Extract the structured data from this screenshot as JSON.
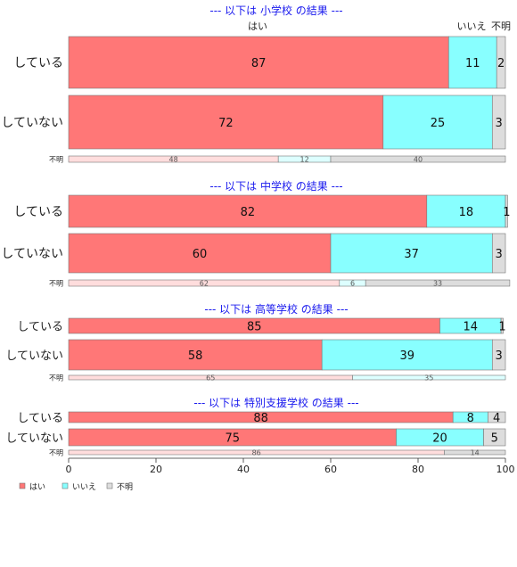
{
  "chart_data": {
    "type": "bar",
    "orientation": "horizontal",
    "stacked": "percent",
    "xlim": [
      0,
      100
    ],
    "x_ticks": [
      "0",
      "20",
      "40",
      "60",
      "80",
      "100"
    ],
    "series": [
      {
        "name": "はい",
        "color": "#ff7777"
      },
      {
        "name": "いいえ",
        "color": "#88ffff"
      },
      {
        "name": "不明",
        "color": "#dddddd"
      }
    ],
    "legend": {
      "placement": "bottom-left",
      "labels": [
        "はい",
        "いいえ",
        "不明"
      ]
    },
    "column_headers": [
      "はい",
      "いいえ",
      "不明"
    ],
    "panels": [
      {
        "title": "--- 以下は 小学校 の結果 ---",
        "rows": [
          {
            "label": "している",
            "values": [
              87,
              11,
              2
            ],
            "labels": [
              "87",
              "11",
              "2"
            ]
          },
          {
            "label": "していない",
            "values": [
              72,
              25,
              3
            ],
            "labels": [
              "72",
              "25",
              "3"
            ]
          },
          {
            "label": "不明",
            "values": [
              48,
              12,
              40
            ],
            "labels": [
              "48",
              "12",
              "40"
            ],
            "faded": true
          }
        ]
      },
      {
        "title": "--- 以下は 中学校 の結果 ---",
        "rows": [
          {
            "label": "している",
            "values": [
              82,
              18,
              0.5
            ],
            "labels": [
              "82",
              "18",
              "1"
            ]
          },
          {
            "label": "していない",
            "values": [
              60,
              37,
              3
            ],
            "labels": [
              "60",
              "37",
              "3"
            ]
          },
          {
            "label": "不明",
            "values": [
              62,
              6,
              33
            ],
            "labels": [
              "62",
              "6",
              "33"
            ],
            "faded": true
          }
        ]
      },
      {
        "title": "--- 以下は 高等学校 の結果 ---",
        "rows": [
          {
            "label": "している",
            "values": [
              85,
              14,
              0.5
            ],
            "labels": [
              "85",
              "14",
              "1"
            ]
          },
          {
            "label": "していない",
            "values": [
              58,
              39,
              3
            ],
            "labels": [
              "58",
              "39",
              "3"
            ]
          },
          {
            "label": "不明",
            "values": [
              65,
              35,
              0
            ],
            "labels": [
              "65",
              "35",
              ""
            ],
            "faded": true
          }
        ]
      },
      {
        "title": "--- 以下は 特別支援学校 の結果 ---",
        "rows": [
          {
            "label": "している",
            "values": [
              88,
              8,
              4
            ],
            "labels": [
              "88",
              "8",
              "4"
            ]
          },
          {
            "label": "していない",
            "values": [
              75,
              20,
              5
            ],
            "labels": [
              "75",
              "20",
              "5"
            ]
          },
          {
            "label": "不明",
            "values": [
              86,
              0,
              14
            ],
            "labels": [
              "86",
              "",
              "14"
            ],
            "faded": true
          }
        ]
      }
    ]
  }
}
